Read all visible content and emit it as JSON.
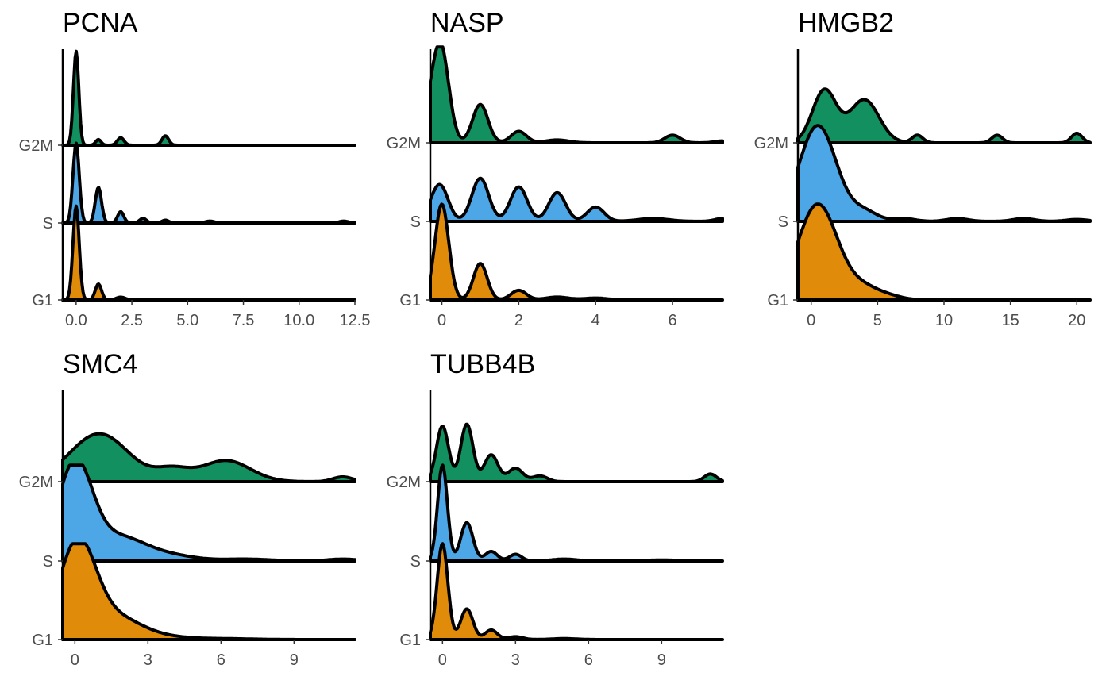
{
  "colors": {
    "G1": "#E08B0A",
    "S": "#4DA6E6",
    "G2M": "#12905F",
    "outline": "#000000"
  },
  "chart_data": [
    {
      "type": "ridgeline",
      "title": "PCNA",
      "categories": [
        "G2M",
        "S",
        "G1"
      ],
      "xlim": [
        -0.6,
        12.5
      ],
      "xticks": [
        0,
        2.5,
        5,
        7.5,
        10,
        12.5
      ],
      "xtick_labels": [
        "0.0",
        "2.5",
        "5.0",
        "7.5",
        "10.0",
        "12.5"
      ],
      "series": [
        {
          "name": "G2M",
          "peaks": [
            [
              0,
              1.0,
              0.12
            ],
            [
              1,
              0.06,
              0.12
            ],
            [
              2,
              0.08,
              0.15
            ],
            [
              4,
              0.1,
              0.15
            ]
          ]
        },
        {
          "name": "S",
          "peaks": [
            [
              0,
              0.85,
              0.14
            ],
            [
              1,
              0.38,
              0.14
            ],
            [
              2,
              0.12,
              0.14
            ],
            [
              3,
              0.05,
              0.15
            ],
            [
              4,
              0.03,
              0.15
            ],
            [
              6,
              0.02,
              0.2
            ],
            [
              12,
              0.02,
              0.2
            ]
          ]
        },
        {
          "name": "G1",
          "peaks": [
            [
              0,
              1.0,
              0.14
            ],
            [
              1,
              0.17,
              0.14
            ],
            [
              2,
              0.03,
              0.2
            ]
          ]
        }
      ]
    },
    {
      "type": "ridgeline",
      "title": "NASP",
      "categories": [
        "G2M",
        "S",
        "G1"
      ],
      "xlim": [
        -0.3,
        7.3
      ],
      "xticks": [
        0,
        2,
        4,
        6
      ],
      "xtick_labels": [
        "0",
        "2",
        "4",
        "6"
      ],
      "series": [
        {
          "name": "G2M",
          "peaks": [
            [
              -0.2,
              0.45,
              0.25
            ],
            [
              0,
              0.7,
              0.2
            ],
            [
              1,
              0.4,
              0.2
            ],
            [
              2,
              0.12,
              0.2
            ],
            [
              3,
              0.03,
              0.3
            ],
            [
              6,
              0.08,
              0.2
            ],
            [
              7.3,
              0.02,
              0.2
            ]
          ]
        },
        {
          "name": "S",
          "peaks": [
            [
              -0.2,
              0.15,
              0.2
            ],
            [
              0,
              0.28,
              0.2
            ],
            [
              1,
              0.45,
              0.22
            ],
            [
              2,
              0.36,
              0.22
            ],
            [
              3,
              0.3,
              0.22
            ],
            [
              4,
              0.15,
              0.22
            ],
            [
              5.5,
              0.03,
              0.4
            ],
            [
              7.3,
              0.03,
              0.2
            ]
          ]
        },
        {
          "name": "G1",
          "peaks": [
            [
              0,
              1.0,
              0.18
            ],
            [
              1,
              0.38,
              0.18
            ],
            [
              2,
              0.1,
              0.2
            ],
            [
              3,
              0.03,
              0.3
            ],
            [
              4,
              0.02,
              0.3
            ]
          ]
        }
      ]
    },
    {
      "type": "ridgeline",
      "title": "HMGB2",
      "categories": [
        "G2M",
        "S",
        "G1"
      ],
      "xlim": [
        -1,
        21
      ],
      "xticks": [
        0,
        5,
        10,
        15,
        20
      ],
      "xtick_labels": [
        "0",
        "5",
        "10",
        "15",
        "20"
      ],
      "series": [
        {
          "name": "G2M",
          "peaks": [
            [
              1,
              0.55,
              0.9
            ],
            [
              4,
              0.45,
              1.1
            ],
            [
              8,
              0.08,
              0.4
            ],
            [
              14,
              0.08,
              0.4
            ],
            [
              20,
              0.1,
              0.4
            ]
          ]
        },
        {
          "name": "S",
          "peaks": [
            [
              0.5,
              1.0,
              1.4
            ],
            [
              4,
              0.1,
              1.0
            ],
            [
              7,
              0.03,
              0.8
            ],
            [
              11,
              0.03,
              0.8
            ],
            [
              16,
              0.03,
              0.8
            ],
            [
              20,
              0.02,
              0.8
            ]
          ]
        },
        {
          "name": "G1",
          "peaks": [
            [
              0.5,
              1.0,
              1.5
            ],
            [
              4,
              0.12,
              1.2
            ],
            [
              6,
              0.03,
              1.0
            ]
          ]
        }
      ]
    },
    {
      "type": "ridgeline",
      "title": "SMC4",
      "categories": [
        "G2M",
        "S",
        "G1"
      ],
      "xlim": [
        -0.5,
        11.5
      ],
      "xticks": [
        0,
        3,
        6,
        9
      ],
      "xtick_labels": [
        "0",
        "3",
        "6",
        "9"
      ],
      "series": [
        {
          "name": "G2M",
          "peaks": [
            [
              1,
              0.5,
              1.2
            ],
            [
              4,
              0.12,
              0.7
            ],
            [
              6.2,
              0.22,
              1.0
            ],
            [
              11,
              0.05,
              0.4
            ]
          ]
        },
        {
          "name": "S",
          "peaks": [
            [
              0,
              1.0,
              0.7
            ],
            [
              1.8,
              0.25,
              1.1
            ],
            [
              4,
              0.05,
              1.0
            ],
            [
              7,
              0.02,
              1.0
            ],
            [
              11,
              0.02,
              0.6
            ]
          ]
        },
        {
          "name": "G1",
          "peaks": [
            [
              0.1,
              1.0,
              0.75
            ],
            [
              1.7,
              0.22,
              1.0
            ],
            [
              3.5,
              0.03,
              1.0
            ],
            [
              6,
              0.01,
              1.2
            ]
          ]
        }
      ]
    },
    {
      "type": "ridgeline",
      "title": "TUBB4B",
      "categories": [
        "G2M",
        "S",
        "G1"
      ],
      "xlim": [
        -0.5,
        11.5
      ],
      "xticks": [
        0,
        3,
        6,
        9
      ],
      "xtick_labels": [
        "0",
        "3",
        "6",
        "9"
      ],
      "series": [
        {
          "name": "G2M",
          "peaks": [
            [
              0,
              0.58,
              0.25
            ],
            [
              1,
              0.6,
              0.25
            ],
            [
              2,
              0.28,
              0.28
            ],
            [
              3,
              0.14,
              0.3
            ],
            [
              4,
              0.06,
              0.3
            ],
            [
              11,
              0.08,
              0.25
            ]
          ]
        },
        {
          "name": "S",
          "peaks": [
            [
              0,
              1.0,
              0.2
            ],
            [
              1,
              0.4,
              0.25
            ],
            [
              2,
              0.1,
              0.25
            ],
            [
              3,
              0.07,
              0.25
            ],
            [
              5,
              0.02,
              0.5
            ],
            [
              9,
              0.01,
              0.8
            ]
          ]
        },
        {
          "name": "G1",
          "peaks": [
            [
              0,
              1.0,
              0.22
            ],
            [
              1,
              0.32,
              0.25
            ],
            [
              2,
              0.1,
              0.25
            ],
            [
              3,
              0.03,
              0.3
            ],
            [
              5,
              0.01,
              0.5
            ]
          ]
        }
      ]
    }
  ]
}
